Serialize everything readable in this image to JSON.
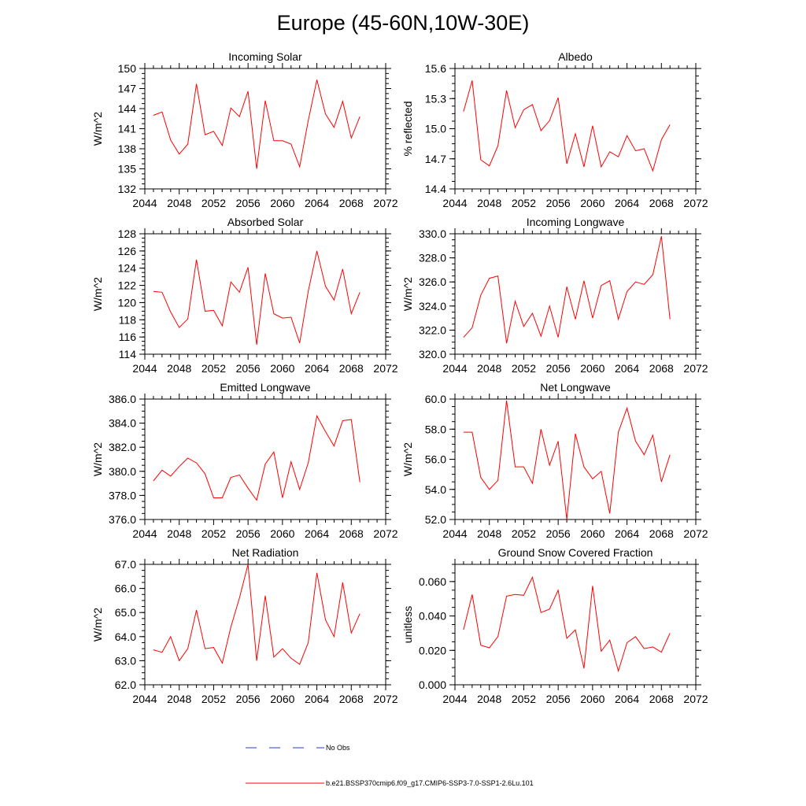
{
  "title": "Europe (45-60N,10W-30E)",
  "colors": {
    "model": "#ff0000",
    "obs": "#1f3fbf",
    "axis": "#000000"
  },
  "legend": [
    {
      "label": "No Obs",
      "style": "dashed",
      "color": "#1f3fbf"
    },
    {
      "label": "b.e21.BSSP370cmip6.f09_g17.CMIP6-SSP3-7.0-SSP1-2.6Lu.101",
      "style": "solid",
      "color": "#ff0000"
    }
  ],
  "chart_data": [
    {
      "type": "line",
      "title": "Incoming Solar",
      "ylabel": "W/m^2",
      "xlim": [
        2044,
        2072
      ],
      "ylim": [
        132,
        150
      ],
      "xticks": [
        2044,
        2048,
        2052,
        2056,
        2060,
        2064,
        2068,
        2072
      ],
      "yticks": [
        "132",
        "135",
        "138",
        "141",
        "144",
        "147",
        "150"
      ],
      "x": [
        2045,
        2046,
        2047,
        2048,
        2049,
        2050,
        2051,
        2052,
        2053,
        2054,
        2055,
        2056,
        2057,
        2058,
        2059,
        2060,
        2061,
        2062,
        2063,
        2064,
        2065,
        2066,
        2067,
        2068,
        2069
      ],
      "series": [
        {
          "values": [
            143.0,
            143.5,
            139.3,
            137.2,
            138.7,
            147.7,
            140.1,
            140.6,
            138.5,
            144.1,
            142.8,
            146.6,
            135.0,
            145.2,
            139.2,
            139.2,
            138.7,
            135.3,
            142.2,
            148.3,
            143.2,
            141.2,
            145.1,
            139.6,
            142.8
          ]
        }
      ]
    },
    {
      "type": "line",
      "title": "Albedo",
      "ylabel": "% reflected",
      "xlim": [
        2044,
        2072
      ],
      "ylim": [
        14.4,
        15.6
      ],
      "xticks": [
        2044,
        2048,
        2052,
        2056,
        2060,
        2064,
        2068,
        2072
      ],
      "yticks": [
        "14.4",
        "14.7",
        "15.0",
        "15.3",
        "15.6"
      ],
      "x": [
        2045,
        2046,
        2047,
        2048,
        2049,
        2050,
        2051,
        2052,
        2053,
        2054,
        2055,
        2056,
        2057,
        2058,
        2059,
        2060,
        2061,
        2062,
        2063,
        2064,
        2065,
        2066,
        2067,
        2068,
        2069
      ],
      "series": [
        {
          "values": [
            15.17,
            15.48,
            14.69,
            14.63,
            14.83,
            15.38,
            15.01,
            15.19,
            15.24,
            14.98,
            15.08,
            15.31,
            14.65,
            14.95,
            14.62,
            15.03,
            14.62,
            14.77,
            14.72,
            14.93,
            14.78,
            14.8,
            14.58,
            14.89,
            15.04
          ]
        }
      ]
    },
    {
      "type": "line",
      "title": "Absorbed Solar",
      "ylabel": "W/m^2",
      "xlim": [
        2044,
        2072
      ],
      "ylim": [
        114,
        128
      ],
      "xticks": [
        2044,
        2048,
        2052,
        2056,
        2060,
        2064,
        2068,
        2072
      ],
      "yticks": [
        "114",
        "116",
        "118",
        "120",
        "122",
        "124",
        "126",
        "128"
      ],
      "x": [
        2045,
        2046,
        2047,
        2048,
        2049,
        2050,
        2051,
        2052,
        2053,
        2054,
        2055,
        2056,
        2057,
        2058,
        2059,
        2060,
        2061,
        2062,
        2063,
        2064,
        2065,
        2066,
        2067,
        2068,
        2069
      ],
      "series": [
        {
          "values": [
            121.3,
            121.2,
            118.9,
            117.1,
            118.1,
            125.0,
            119.0,
            119.1,
            117.3,
            122.4,
            121.2,
            124.1,
            115.1,
            123.4,
            118.7,
            118.2,
            118.3,
            115.3,
            121.3,
            126.0,
            121.9,
            120.3,
            123.9,
            118.7,
            121.2
          ]
        }
      ]
    },
    {
      "type": "line",
      "title": "Incoming Longwave",
      "ylabel": "W/m^2",
      "xlim": [
        2044,
        2072
      ],
      "ylim": [
        320,
        330
      ],
      "xticks": [
        2044,
        2048,
        2052,
        2056,
        2060,
        2064,
        2068,
        2072
      ],
      "yticks": [
        "320.0",
        "322.0",
        "324.0",
        "326.0",
        "328.0",
        "330.0"
      ],
      "x": [
        2045,
        2046,
        2047,
        2048,
        2049,
        2050,
        2051,
        2052,
        2053,
        2054,
        2055,
        2056,
        2057,
        2058,
        2059,
        2060,
        2061,
        2062,
        2063,
        2064,
        2065,
        2066,
        2067,
        2068,
        2069
      ],
      "series": [
        {
          "values": [
            321.4,
            322.2,
            324.9,
            326.3,
            326.5,
            320.9,
            324.4,
            322.3,
            323.4,
            321.5,
            324.0,
            321.4,
            325.6,
            322.9,
            326.1,
            323.0,
            325.7,
            326.1,
            322.9,
            325.2,
            326.0,
            325.8,
            326.6,
            329.8,
            322.9
          ]
        }
      ]
    },
    {
      "type": "line",
      "title": "Emitted Longwave",
      "ylabel": "W/m^2",
      "xlim": [
        2044,
        2072
      ],
      "ylim": [
        376,
        386
      ],
      "xticks": [
        2044,
        2048,
        2052,
        2056,
        2060,
        2064,
        2068,
        2072
      ],
      "yticks": [
        "376.0",
        "378.0",
        "380.0",
        "382.0",
        "384.0",
        "386.0"
      ],
      "x": [
        2045,
        2046,
        2047,
        2048,
        2049,
        2050,
        2051,
        2052,
        2053,
        2054,
        2055,
        2056,
        2057,
        2058,
        2059,
        2060,
        2061,
        2062,
        2063,
        2064,
        2065,
        2066,
        2067,
        2068,
        2069
      ],
      "series": [
        {
          "values": [
            379.2,
            380.1,
            379.6,
            380.4,
            381.1,
            380.7,
            379.8,
            377.8,
            377.8,
            379.5,
            379.7,
            378.6,
            377.6,
            380.6,
            381.6,
            377.8,
            380.8,
            378.5,
            380.7,
            384.6,
            383.3,
            382.1,
            384.2,
            384.3,
            379.1
          ]
        }
      ]
    },
    {
      "type": "line",
      "title": "Net Longwave",
      "ylabel": "W/m^2",
      "xlim": [
        2044,
        2072
      ],
      "ylim": [
        52,
        60
      ],
      "xticks": [
        2044,
        2048,
        2052,
        2056,
        2060,
        2064,
        2068,
        2072
      ],
      "yticks": [
        "52.0",
        "54.0",
        "56.0",
        "58.0",
        "60.0"
      ],
      "x": [
        2045,
        2046,
        2047,
        2048,
        2049,
        2050,
        2051,
        2052,
        2053,
        2054,
        2055,
        2056,
        2057,
        2058,
        2059,
        2060,
        2061,
        2062,
        2063,
        2064,
        2065,
        2066,
        2067,
        2068,
        2069
      ],
      "series": [
        {
          "values": [
            57.8,
            57.8,
            54.8,
            54.0,
            54.6,
            59.9,
            55.5,
            55.5,
            54.4,
            58.0,
            55.6,
            57.2,
            52.0,
            57.7,
            55.5,
            54.7,
            55.2,
            52.4,
            57.8,
            59.4,
            57.2,
            56.3,
            57.6,
            54.5,
            56.3
          ]
        }
      ]
    },
    {
      "type": "line",
      "title": "Net Radiation",
      "ylabel": "W/m^2",
      "xlim": [
        2044,
        2072
      ],
      "ylim": [
        62,
        67
      ],
      "xticks": [
        2044,
        2048,
        2052,
        2056,
        2060,
        2064,
        2068,
        2072
      ],
      "yticks": [
        "62.0",
        "63.0",
        "64.0",
        "65.0",
        "66.0",
        "67.0"
      ],
      "x": [
        2045,
        2046,
        2047,
        2048,
        2049,
        2050,
        2051,
        2052,
        2053,
        2054,
        2055,
        2056,
        2057,
        2058,
        2059,
        2060,
        2061,
        2062,
        2063,
        2064,
        2065,
        2066,
        2067,
        2068,
        2069
      ],
      "series": [
        {
          "values": [
            63.45,
            63.35,
            64.0,
            63.0,
            63.5,
            65.1,
            63.5,
            63.55,
            62.9,
            64.4,
            65.6,
            67.0,
            63.0,
            65.7,
            63.15,
            63.5,
            63.1,
            62.85,
            63.75,
            66.65,
            64.7,
            64.0,
            66.25,
            64.15,
            64.95
          ]
        }
      ]
    },
    {
      "type": "line",
      "title": "Ground Snow Covered Fraction",
      "ylabel": "unitless",
      "xlim": [
        2044,
        2072
      ],
      "ylim": [
        0,
        0.07
      ],
      "xticks": [
        2044,
        2048,
        2052,
        2056,
        2060,
        2064,
        2068,
        2072
      ],
      "yticks": [
        "0.000",
        "0.020",
        "0.040",
        "0.060"
      ],
      "ytickvals": [
        0,
        0.02,
        0.04,
        0.06
      ],
      "x": [
        2045,
        2046,
        2047,
        2048,
        2049,
        2050,
        2051,
        2052,
        2053,
        2054,
        2055,
        2056,
        2057,
        2058,
        2059,
        2060,
        2061,
        2062,
        2063,
        2064,
        2065,
        2066,
        2067,
        2068,
        2069
      ],
      "series": [
        {
          "values": [
            0.032,
            0.0525,
            0.023,
            0.0215,
            0.028,
            0.0515,
            0.0525,
            0.052,
            0.0625,
            0.042,
            0.044,
            0.055,
            0.027,
            0.032,
            0.0095,
            0.0575,
            0.0195,
            0.026,
            0.008,
            0.0245,
            0.028,
            0.021,
            0.022,
            0.019,
            0.03
          ]
        }
      ]
    }
  ]
}
